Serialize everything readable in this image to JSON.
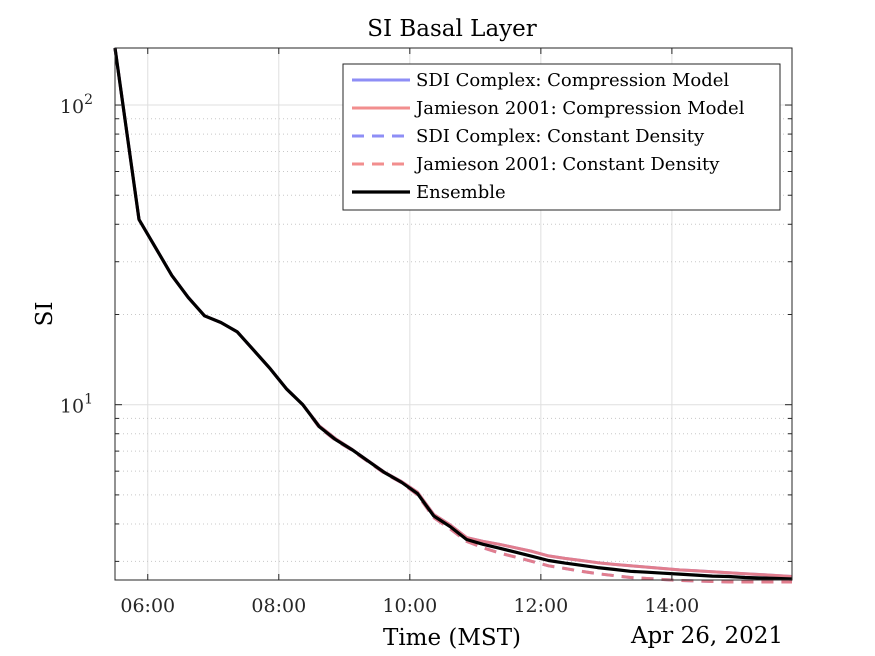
{
  "chart_data": {
    "type": "line",
    "title": "SI Basal Layer",
    "xlabel": "Time (MST)",
    "ylabel": "SI",
    "date_label": "Apr 26, 2021",
    "x_tick_labels": [
      "06:00",
      "08:00",
      "10:00",
      "12:00",
      "14:00"
    ],
    "y_tick_labels": [
      {
        "base": "10",
        "exp": "1"
      },
      {
        "base": "10",
        "exp": "2"
      }
    ],
    "y_scale": "log",
    "ylim": [
      2.6,
      155
    ],
    "xlim": [
      "05:30",
      "15:50"
    ],
    "grid": true,
    "legend_position": "top-right",
    "x": [
      "05:30",
      "05:52",
      "06:07",
      "06:22",
      "06:37",
      "06:52",
      "07:07",
      "07:22",
      "07:37",
      "07:52",
      "08:07",
      "08:22",
      "08:37",
      "08:52",
      "09:07",
      "09:22",
      "09:37",
      "09:52",
      "10:07",
      "10:22",
      "10:37",
      "10:52",
      "11:07",
      "11:22",
      "11:37",
      "11:52",
      "12:07",
      "12:22",
      "12:37",
      "12:52",
      "13:07",
      "13:22",
      "13:37",
      "13:52",
      "14:07",
      "14:22",
      "14:37",
      "14:52",
      "15:07",
      "15:22",
      "15:37",
      "15:50"
    ],
    "series": [
      {
        "name": "SDI Complex: Compression Model",
        "color": "#7a7af5",
        "style": "solid",
        "values": [
          155,
          41.5,
          33.5,
          27,
          22.8,
          19.8,
          18.8,
          17.5,
          15.2,
          13.2,
          11.3,
          10,
          8.5,
          7.7,
          7.1,
          6.5,
          5.95,
          5.55,
          5.1,
          4.3,
          3.97,
          3.6,
          3.5,
          3.42,
          3.33,
          3.24,
          3.13,
          3.07,
          3.02,
          2.97,
          2.93,
          2.9,
          2.87,
          2.84,
          2.81,
          2.79,
          2.77,
          2.75,
          2.73,
          2.71,
          2.69,
          2.67
        ]
      },
      {
        "name": "Jamieson 2001: Compression Model",
        "color": "#f07a7a",
        "style": "solid",
        "values": [
          155,
          41.5,
          33.5,
          27,
          22.8,
          19.8,
          18.8,
          17.5,
          15.2,
          13.2,
          11.3,
          10,
          8.5,
          7.7,
          7.1,
          6.5,
          5.95,
          5.55,
          5.1,
          4.3,
          3.97,
          3.6,
          3.5,
          3.42,
          3.33,
          3.24,
          3.13,
          3.07,
          3.02,
          2.97,
          2.93,
          2.9,
          2.87,
          2.84,
          2.81,
          2.79,
          2.77,
          2.75,
          2.73,
          2.71,
          2.69,
          2.67
        ]
      },
      {
        "name": "SDI Complex: Constant Density",
        "color": "#7a7af5",
        "style": "dashed",
        "values": [
          155,
          41.5,
          33.5,
          27,
          22.8,
          19.8,
          18.8,
          17.5,
          15.2,
          13.2,
          11.3,
          10,
          8.4,
          7.6,
          7.05,
          6.45,
          5.9,
          5.5,
          5.0,
          4.2,
          3.85,
          3.5,
          3.33,
          3.2,
          3.1,
          3.0,
          2.9,
          2.84,
          2.78,
          2.73,
          2.69,
          2.65,
          2.63,
          2.61,
          2.59,
          2.58,
          2.57,
          2.56,
          2.56,
          2.56,
          2.56,
          2.56
        ]
      },
      {
        "name": "Jamieson 2001: Constant Density",
        "color": "#f07a7a",
        "style": "dashed",
        "values": [
          155,
          41.5,
          33.5,
          27,
          22.8,
          19.8,
          18.8,
          17.5,
          15.2,
          13.2,
          11.3,
          10,
          8.4,
          7.6,
          7.05,
          6.45,
          5.9,
          5.5,
          5.0,
          4.2,
          3.85,
          3.5,
          3.33,
          3.2,
          3.1,
          3.0,
          2.9,
          2.84,
          2.78,
          2.73,
          2.69,
          2.65,
          2.63,
          2.61,
          2.59,
          2.58,
          2.57,
          2.56,
          2.56,
          2.56,
          2.56,
          2.56
        ]
      },
      {
        "name": "Ensemble",
        "color": "#000000",
        "style": "solid",
        "values": [
          155,
          41.5,
          33.5,
          27,
          22.8,
          19.8,
          18.8,
          17.5,
          15.2,
          13.2,
          11.3,
          10,
          8.45,
          7.65,
          7.08,
          6.48,
          5.93,
          5.52,
          5.05,
          4.25,
          3.92,
          3.55,
          3.42,
          3.32,
          3.22,
          3.12,
          3.02,
          2.96,
          2.91,
          2.86,
          2.82,
          2.78,
          2.76,
          2.74,
          2.72,
          2.7,
          2.68,
          2.67,
          2.65,
          2.64,
          2.63,
          2.62
        ]
      }
    ]
  }
}
